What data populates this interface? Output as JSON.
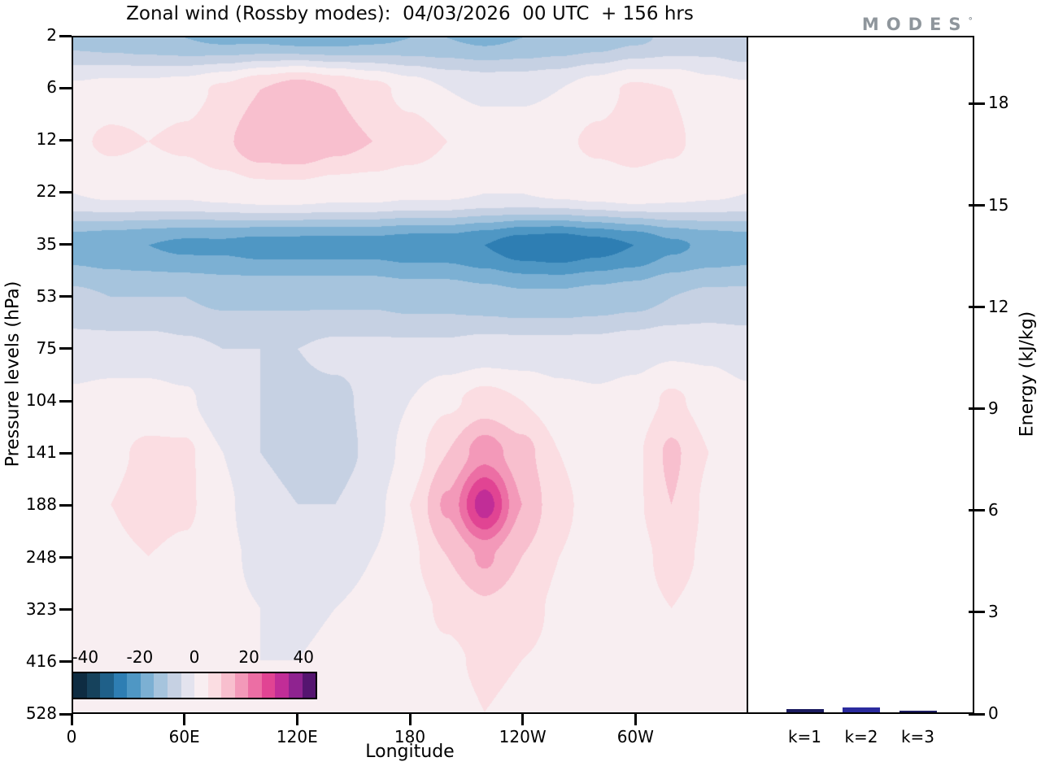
{
  "title": "Zonal wind (Rossby modes):  04/03/2026  00 UTC  + 156 hrs",
  "logo": {
    "text": "MODES",
    "sup": "°"
  },
  "chart_data": [
    {
      "type": "heatmap",
      "subtype": "filled-contour",
      "title": "Zonal wind (Rossby modes):  04/03/2026  00 UTC  + 156 hrs",
      "xlabel": "Longitude",
      "ylabel": "Pressure levels (hPa)",
      "x_tick_labels": [
        "0",
        "60E",
        "120E",
        "180",
        "120W",
        "60W"
      ],
      "x_tick_lons": [
        0,
        60,
        120,
        180,
        240,
        300
      ],
      "lon_range": [
        0,
        360
      ],
      "pressure_levels": [
        2,
        6,
        12,
        22,
        35,
        53,
        75,
        104,
        141,
        188,
        248,
        323,
        416,
        528
      ],
      "lon_grid": [
        0,
        20,
        40,
        60,
        80,
        100,
        120,
        140,
        160,
        180,
        200,
        220,
        240,
        260,
        280,
        300,
        320,
        340,
        360
      ],
      "values": [
        [
          -12,
          -13,
          -14,
          -15,
          -16,
          -16,
          -17,
          -17,
          -16,
          -15,
          -15,
          -16,
          -15,
          -14,
          -13,
          -11,
          -9,
          -8,
          -10
        ],
        [
          1,
          2,
          2,
          3,
          6,
          10,
          13,
          10,
          7,
          3,
          0,
          -1,
          -1,
          0,
          3,
          6,
          5,
          2,
          1
        ],
        [
          4,
          6,
          5,
          6,
          9,
          14,
          15,
          12,
          10,
          8,
          5,
          3,
          3,
          4,
          6,
          7,
          6,
          3,
          2
        ],
        [
          0,
          1,
          1,
          1,
          2,
          3,
          3,
          2,
          2,
          1,
          1,
          0,
          0,
          1,
          2,
          3,
          2,
          1,
          0
        ],
        [
          -18,
          -19,
          -20,
          -21,
          -21,
          -22,
          -22,
          -22,
          -22,
          -23,
          -23,
          -25,
          -28,
          -29,
          -27,
          -25,
          -21,
          -19,
          -18
        ],
        [
          -9,
          -10,
          -10,
          -10,
          -11,
          -11,
          -11,
          -11,
          -11,
          -12,
          -12,
          -13,
          -14,
          -14,
          -13,
          -12,
          -10,
          -9,
          -9
        ],
        [
          -3,
          -3,
          -3,
          -4,
          -5,
          -5,
          -5,
          -4,
          -4,
          -4,
          -4,
          -3,
          -3,
          -3,
          -3,
          -2,
          -1,
          -1,
          -2
        ],
        [
          1,
          2,
          2,
          1,
          -4,
          -5,
          -6,
          -6,
          -4,
          0,
          4,
          7,
          5,
          2,
          1,
          2,
          6,
          3,
          1
        ],
        [
          2,
          4,
          6,
          6,
          0,
          -5,
          -7,
          -7,
          -4,
          2,
          10,
          18,
          12,
          5,
          2,
          4,
          11,
          5,
          2
        ],
        [
          2,
          5,
          7,
          6,
          1,
          -3,
          -5,
          -5,
          -2,
          5,
          16,
          33,
          15,
          6,
          3,
          4,
          10,
          4,
          2
        ],
        [
          2,
          4,
          5,
          4,
          1,
          -1,
          -2,
          -2,
          0,
          4,
          10,
          16,
          10,
          5,
          3,
          3,
          7,
          4,
          2
        ],
        [
          1,
          3,
          4,
          3,
          1,
          0,
          -1,
          0,
          1,
          3,
          6,
          9,
          7,
          4,
          3,
          3,
          5,
          3,
          2
        ],
        [
          1,
          2,
          3,
          2,
          1,
          0,
          0,
          1,
          2,
          3,
          4,
          6,
          5,
          4,
          3,
          3,
          4,
          3,
          2
        ],
        [
          1,
          2,
          2,
          2,
          1,
          1,
          1,
          1,
          2,
          2,
          3,
          5,
          4,
          3,
          3,
          2,
          3,
          2,
          2
        ]
      ],
      "bin_min": -45,
      "bin_size": 5,
      "palette": [
        "#0e2c42",
        "#16425c",
        "#1f6089",
        "#2e7eb3",
        "#4f97c4",
        "#7cb0d3",
        "#a6c4dd",
        "#c6d1e3",
        "#e3e3ee",
        "#f8eef1",
        "#fbdde2",
        "#f8bfce",
        "#f399b9",
        "#ec6ea4",
        "#e14493",
        "#c12d97",
        "#8f2390",
        "#551570"
      ],
      "colorbar_ticks": [
        -40,
        -20,
        0,
        20,
        40
      ]
    },
    {
      "type": "bar",
      "categories": [
        "k=1",
        "k=2",
        "k=3"
      ],
      "values": [
        0.1,
        0.14,
        0.06
      ],
      "bar_colors": [
        "#1b1b60",
        "#2b2b9e",
        "#1b1b60"
      ],
      "ylabel": "Energy (kJ/kg)",
      "ylim": [
        0,
        20
      ],
      "y_ticks": [
        0,
        3,
        6,
        9,
        12,
        15,
        18
      ],
      "legend": "none",
      "grid": false
    }
  ]
}
